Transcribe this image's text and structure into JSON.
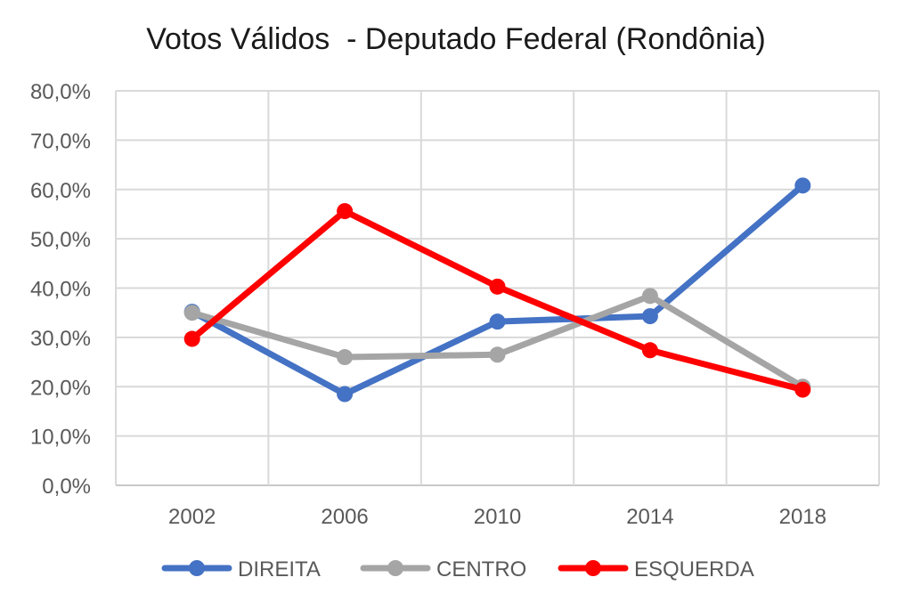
{
  "chart_data": {
    "type": "line",
    "title": "Votos Válidos  - Deputado Federal (Rondônia)",
    "xlabel": "",
    "ylabel": "",
    "categories": [
      "2002",
      "2006",
      "2010",
      "2014",
      "2018"
    ],
    "ylim": [
      0,
      80
    ],
    "yticks": [
      "0,0%",
      "10,0%",
      "20,0%",
      "30,0%",
      "40,0%",
      "50,0%",
      "60,0%",
      "70,0%",
      "80,0%"
    ],
    "grid": true,
    "legend_position": "bottom",
    "series": [
      {
        "name": "DIREITA",
        "color": "#4472C4",
        "values": [
          35.2,
          18.5,
          33.2,
          34.3,
          60.8
        ]
      },
      {
        "name": "CENTRO",
        "color": "#A5A5A5",
        "values": [
          35.0,
          26.0,
          26.5,
          38.4,
          20.0
        ]
      },
      {
        "name": "ESQUERDA",
        "color": "#FF0000",
        "values": [
          29.7,
          55.6,
          40.3,
          27.4,
          19.4
        ]
      }
    ]
  }
}
